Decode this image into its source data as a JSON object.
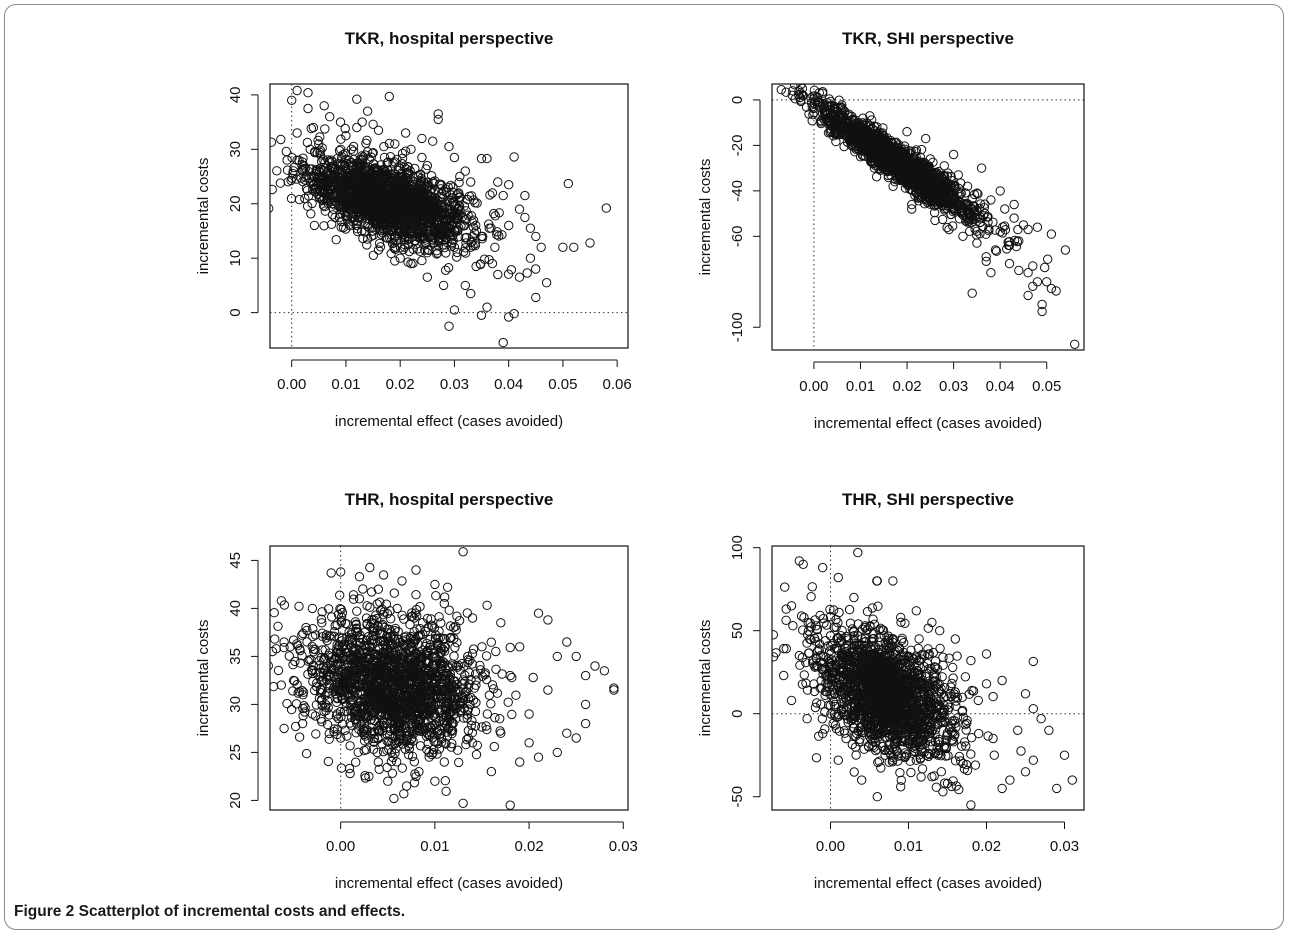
{
  "figure": {
    "label": "Figure 2",
    "caption": "Scatterplot of incremental costs and effects."
  },
  "chart_data": [
    {
      "type": "scatter",
      "title": "TKR, hospital perspective",
      "xlabel": "incremental effect (cases avoided)",
      "ylabel": "incremental costs",
      "xlim": [
        -0.004,
        0.062
      ],
      "ylim": [
        -6.5,
        42
      ],
      "xticks": [
        0.0,
        0.01,
        0.02,
        0.03,
        0.04,
        0.05,
        0.06
      ],
      "xtick_labels": [
        "0.00",
        "0.01",
        "0.02",
        "0.03",
        "0.04",
        "0.05",
        "0.06"
      ],
      "yticks": [
        0,
        10,
        20,
        30,
        40
      ],
      "ytick_labels": [
        "0",
        "10",
        "20",
        "30",
        "40"
      ],
      "reference_lines": {
        "x": 0,
        "y": 0
      },
      "points": [
        [
          -0.002,
          31.8
        ],
        [
          0.0,
          39.0
        ],
        [
          0.001,
          40.8
        ],
        [
          0.003,
          40.4
        ],
        [
          0.003,
          37.5
        ],
        [
          0.001,
          33.0
        ],
        [
          -0.001,
          29.6
        ],
        [
          0.004,
          34.0
        ],
        [
          0.005,
          31.0
        ],
        [
          0.007,
          36.0
        ],
        [
          0.009,
          35.0
        ],
        [
          0.01,
          32.5
        ],
        [
          0.012,
          39.2
        ],
        [
          0.012,
          34.0
        ],
        [
          0.011,
          30.0
        ],
        [
          0.013,
          28.0
        ],
        [
          0.015,
          34.6
        ],
        [
          0.017,
          30.5
        ],
        [
          0.018,
          39.7
        ],
        [
          0.019,
          31.0
        ],
        [
          0.02,
          26.5
        ],
        [
          0.022,
          30.0
        ],
        [
          0.024,
          28.5
        ],
        [
          0.025,
          27.0
        ],
        [
          0.027,
          35.5
        ],
        [
          0.027,
          36.5
        ],
        [
          0.029,
          30.5
        ],
        [
          0.03,
          28.5
        ],
        [
          0.031,
          25.0
        ],
        [
          0.033,
          24.0
        ],
        [
          0.035,
          28.3
        ],
        [
          0.036,
          28.3
        ],
        [
          0.038,
          24.0
        ],
        [
          0.039,
          21.5
        ],
        [
          0.041,
          28.6
        ],
        [
          0.04,
          23.5
        ],
        [
          0.042,
          19.0
        ],
        [
          0.043,
          17.5
        ],
        [
          0.044,
          15.5
        ],
        [
          0.045,
          14.0
        ],
        [
          0.046,
          12.0
        ],
        [
          0.047,
          5.5
        ],
        [
          0.044,
          10.0
        ],
        [
          0.042,
          6.5
        ],
        [
          0.041,
          -0.2
        ],
        [
          0.04,
          -0.8
        ],
        [
          0.039,
          -5.5
        ],
        [
          0.036,
          1.0
        ],
        [
          0.035,
          -0.5
        ],
        [
          0.033,
          3.5
        ],
        [
          0.029,
          -2.5
        ],
        [
          0.03,
          0.5
        ],
        [
          0.032,
          5.0
        ],
        [
          0.051,
          23.7
        ],
        [
          0.05,
          12.0
        ],
        [
          0.052,
          12.0
        ],
        [
          0.055,
          12.8
        ],
        [
          0.058,
          19.2
        ],
        [
          0.045,
          2.8
        ],
        [
          0.038,
          7.0
        ],
        [
          0.034,
          8.5
        ],
        [
          0.028,
          5.0
        ],
        [
          0.025,
          6.5
        ],
        [
          0.022,
          9.0
        ],
        [
          0.019,
          9.5
        ],
        [
          0.016,
          11.5
        ],
        [
          0.014,
          13.5
        ],
        [
          0.012,
          16.0
        ],
        [
          0.008,
          17.5
        ],
        [
          0.006,
          21.0
        ],
        [
          0.004,
          23.5
        ],
        [
          0.002,
          26.0
        ],
        [
          0.001,
          28.0
        ],
        [
          0.008,
          24.0
        ],
        [
          0.01,
          20.0
        ],
        [
          0.015,
          15.0
        ],
        [
          0.02,
          10.0
        ],
        [
          0.025,
          11.0
        ],
        [
          0.03,
          12.0
        ],
        [
          0.035,
          14.0
        ],
        [
          0.04,
          16.0
        ],
        [
          0.043,
          21.5
        ],
        [
          0.037,
          22.0
        ],
        [
          0.032,
          26.0
        ],
        [
          0.026,
          31.5
        ],
        [
          0.024,
          32.0
        ],
        [
          0.021,
          33.0
        ],
        [
          0.016,
          33.5
        ],
        [
          0.013,
          35.0
        ],
        [
          0.006,
          38.0
        ],
        [
          0.014,
          37.0
        ],
        [
          0.009,
          27.0
        ],
        [
          0.018,
          22.0
        ],
        [
          0.023,
          18.0
        ],
        [
          0.028,
          15.0
        ],
        [
          0.033,
          12.0
        ],
        [
          0.037,
          9.0
        ],
        [
          0.031,
          18.0
        ],
        [
          0.026,
          21.0
        ],
        [
          0.019,
          25.0
        ]
      ],
      "cloud": {
        "center": [
          0.018,
          20.5
        ],
        "spread": [
          0.0075,
          4.0
        ],
        "correlation": -0.55,
        "n": 1800
      }
    },
    {
      "type": "scatter",
      "title": "TKR, SHI perspective",
      "xlabel": "incremental effect (cases avoided)",
      "ylabel": "incremental costs",
      "xlim": [
        -0.009,
        0.058
      ],
      "ylim": [
        -110,
        7
      ],
      "xticks": [
        0.0,
        0.01,
        0.02,
        0.03,
        0.04,
        0.05
      ],
      "xtick_labels": [
        "0.00",
        "0.01",
        "0.02",
        "0.03",
        "0.04",
        "0.05"
      ],
      "yticks": [
        -100,
        -60,
        -40,
        -20,
        0
      ],
      "ytick_labels": [
        "-100",
        "-60",
        "-40",
        "-20",
        "0"
      ],
      "reference_lines": {
        "x": 0,
        "y": 0
      },
      "points": [
        [
          -0.007,
          4.5
        ],
        [
          -0.004,
          0.5
        ],
        [
          -0.003,
          1.0
        ],
        [
          0.0,
          0.5
        ],
        [
          0.001,
          -1.0
        ],
        [
          0.003,
          -3.0
        ],
        [
          0.006,
          -4.0
        ],
        [
          0.002,
          -8.0
        ],
        [
          0.009,
          -9.0
        ],
        [
          0.012,
          -13.0
        ],
        [
          0.015,
          -17.0
        ],
        [
          0.018,
          -21.0
        ],
        [
          0.022,
          -22.0
        ],
        [
          0.025,
          -26.0
        ],
        [
          0.028,
          -29.0
        ],
        [
          0.031,
          -33.0
        ],
        [
          0.033,
          -38.0
        ],
        [
          0.035,
          -41.0
        ],
        [
          0.038,
          -44.0
        ],
        [
          0.04,
          -40.0
        ],
        [
          0.041,
          -48.0
        ],
        [
          0.043,
          -52.0
        ],
        [
          0.045,
          -55.0
        ],
        [
          0.046,
          -57.0
        ],
        [
          0.044,
          -62.0
        ],
        [
          0.042,
          -64.0
        ],
        [
          0.039,
          -66.0
        ],
        [
          0.037,
          -69.0
        ],
        [
          0.038,
          -76.0
        ],
        [
          0.037,
          -71.0
        ],
        [
          0.034,
          -85.0
        ],
        [
          0.042,
          -72.0
        ],
        [
          0.044,
          -75.0
        ],
        [
          0.046,
          -76.0
        ],
        [
          0.047,
          -73.0
        ],
        [
          0.048,
          -80.0
        ],
        [
          0.046,
          -86.0
        ],
        [
          0.047,
          -82.0
        ],
        [
          0.05,
          -80.0
        ],
        [
          0.051,
          -83.0
        ],
        [
          0.052,
          -84.0
        ],
        [
          0.049,
          -90.0
        ],
        [
          0.049,
          -93.0
        ],
        [
          0.054,
          -66.0
        ],
        [
          0.056,
          -107.5
        ],
        [
          0.051,
          -59.0
        ],
        [
          0.048,
          -56.0
        ],
        [
          0.029,
          -57.0
        ],
        [
          0.032,
          -60.0
        ],
        [
          0.035,
          -63.0
        ],
        [
          0.021,
          -48.0
        ],
        [
          0.023,
          -43.0
        ],
        [
          0.017,
          -38.0
        ],
        [
          0.019,
          -34.0
        ],
        [
          0.013,
          -30.0
        ],
        [
          0.026,
          -53.0
        ],
        [
          0.012,
          -7.0
        ],
        [
          0.02,
          -14.0
        ],
        [
          0.024,
          -17.0
        ],
        [
          0.03,
          -24.0
        ],
        [
          0.036,
          -30.0
        ],
        [
          0.006,
          -12.0
        ],
        [
          0.008,
          -20.0
        ],
        [
          0.01,
          -25.0
        ],
        [
          0.043,
          -46.0
        ],
        [
          0.04,
          -58.0
        ],
        [
          0.033,
          -52.0
        ]
      ],
      "cloud": {
        "center": [
          0.018,
          -27.5
        ],
        "spread": [
          0.0085,
          12.5
        ],
        "correlation": -0.95,
        "n": 1800
      }
    },
    {
      "type": "scatter",
      "title": "THR, hospital perspective",
      "xlabel": "incremental effect (cases avoided)",
      "ylabel": "incremental costs",
      "xlim": [
        -0.0075,
        0.0305
      ],
      "ylim": [
        19,
        46.5
      ],
      "xticks": [
        0.0,
        0.01,
        0.02,
        0.03
      ],
      "xtick_labels": [
        "0.00",
        "0.01",
        "0.02",
        "0.03"
      ],
      "yticks": [
        20,
        25,
        30,
        35,
        40,
        45
      ],
      "ytick_labels": [
        "20",
        "25",
        "30",
        "35",
        "40",
        "45"
      ],
      "reference_lines": {
        "x": 0
      },
      "points": [
        [
          -0.007,
          36.8
        ],
        [
          -0.006,
          36.5
        ],
        [
          -0.005,
          36.7
        ],
        [
          -0.006,
          27.5
        ],
        [
          -0.005,
          32.5
        ],
        [
          -0.004,
          31.0
        ],
        [
          -0.003,
          29.0
        ],
        [
          -0.002,
          28.2
        ],
        [
          -0.003,
          40.0
        ],
        [
          -0.001,
          43.7
        ],
        [
          0.0,
          43.8
        ],
        [
          0.002,
          43.3
        ],
        [
          0.004,
          42.0
        ],
        [
          0.008,
          44.0
        ],
        [
          0.01,
          42.5
        ],
        [
          0.013,
          45.9
        ],
        [
          0.011,
          40.5
        ],
        [
          0.014,
          39.0
        ],
        [
          0.017,
          38.5
        ],
        [
          0.021,
          39.5
        ],
        [
          0.022,
          38.8
        ],
        [
          0.019,
          36.0
        ],
        [
          0.023,
          35.0
        ],
        [
          0.024,
          36.5
        ],
        [
          0.025,
          35.0
        ],
        [
          0.026,
          33.0
        ],
        [
          0.027,
          34.0
        ],
        [
          0.028,
          33.5
        ],
        [
          0.029,
          31.5
        ],
        [
          0.029,
          31.7
        ],
        [
          0.026,
          30.0
        ],
        [
          0.026,
          28.0
        ],
        [
          0.024,
          27.0
        ],
        [
          0.025,
          26.5
        ],
        [
          0.023,
          25.0
        ],
        [
          0.021,
          24.5
        ],
        [
          0.019,
          24.0
        ],
        [
          0.018,
          19.5
        ],
        [
          0.013,
          19.7
        ],
        [
          0.01,
          22.0
        ],
        [
          0.008,
          22.5
        ],
        [
          0.005,
          22.0
        ],
        [
          0.003,
          22.5
        ],
        [
          0.001,
          22.8
        ],
        [
          0.007,
          21.5
        ],
        [
          0.016,
          23.0
        ],
        [
          0.02,
          29.0
        ],
        [
          0.022,
          31.5
        ],
        [
          0.018,
          33.0
        ],
        [
          0.015,
          36.0
        ],
        [
          0.012,
          38.0
        ],
        [
          0.006,
          40.0
        ],
        [
          0.002,
          41.0
        ],
        [
          -0.002,
          38.5
        ],
        [
          -0.001,
          34.0
        ],
        [
          -0.002,
          30.5
        ],
        [
          0.0,
          26.5
        ],
        [
          0.004,
          24.0
        ],
        [
          0.011,
          24.0
        ],
        [
          0.014,
          26.0
        ],
        [
          0.017,
          27.0
        ],
        [
          0.02,
          26.0
        ]
      ],
      "cloud": {
        "center": [
          0.0055,
          32.0
        ],
        "spread": [
          0.0045,
          3.5
        ],
        "correlation": -0.15,
        "n": 1800
      }
    },
    {
      "type": "scatter",
      "title": "THR, SHI perspective",
      "xlabel": "incremental effect (cases avoided)",
      "ylabel": "incremental costs",
      "xlim": [
        -0.0075,
        0.0325
      ],
      "ylim": [
        -58,
        101
      ],
      "xticks": [
        0.0,
        0.01,
        0.02,
        0.03
      ],
      "xtick_labels": [
        "0.00",
        "0.01",
        "0.02",
        "0.03"
      ],
      "yticks": [
        -50,
        0,
        50,
        100
      ],
      "ytick_labels": [
        "-50",
        "0",
        "50",
        "100"
      ],
      "reference_lines": {
        "x": 0,
        "y": 0
      },
      "points": [
        [
          -0.005,
          65.0
        ],
        [
          -0.004,
          92.0
        ],
        [
          -0.0035,
          90.0
        ],
        [
          -0.001,
          88.0
        ],
        [
          0.0035,
          97.0
        ],
        [
          0.001,
          82.0
        ],
        [
          0.006,
          80.0
        ],
        [
          0.008,
          80.0
        ],
        [
          0.011,
          62.0
        ],
        [
          0.013,
          55.0
        ],
        [
          0.016,
          45.0
        ],
        [
          0.018,
          32.0
        ],
        [
          0.02,
          36.0
        ],
        [
          0.022,
          20.0
        ],
        [
          0.026,
          31.5
        ],
        [
          0.025,
          12.0
        ],
        [
          0.026,
          3.0
        ],
        [
          0.027,
          -3.0
        ],
        [
          0.028,
          -10.0
        ],
        [
          0.03,
          -25.0
        ],
        [
          0.031,
          -40.0
        ],
        [
          0.029,
          -45.0
        ],
        [
          0.026,
          -28.0
        ],
        [
          0.025,
          -35.0
        ],
        [
          0.023,
          -40.0
        ],
        [
          0.022,
          -45.0
        ],
        [
          0.018,
          -55.0
        ],
        [
          0.015,
          -42.0
        ],
        [
          0.013,
          -38.0
        ],
        [
          0.009,
          -44.0
        ],
        [
          0.006,
          -50.0
        ],
        [
          0.004,
          -40.0
        ],
        [
          0.001,
          -28.0
        ],
        [
          -0.001,
          -12.0
        ],
        [
          -0.003,
          -3.0
        ],
        [
          -0.005,
          8.0
        ],
        [
          -0.006,
          23.0
        ],
        [
          -0.004,
          35.0
        ],
        [
          -0.002,
          28.0
        ],
        [
          0.003,
          70.0
        ],
        [
          0.009,
          58.0
        ],
        [
          0.014,
          50.0
        ],
        [
          0.02,
          18.0
        ],
        [
          0.024,
          -10.0
        ],
        [
          0.021,
          -25.0
        ],
        [
          0.017,
          -30.0
        ],
        [
          0.011,
          -28.0
        ],
        [
          0.007,
          -25.0
        ],
        [
          0.002,
          -15.0
        ],
        [
          0.0,
          5.0
        ],
        [
          0.003,
          45.0
        ],
        [
          0.012,
          18.0
        ],
        [
          0.016,
          10.0
        ],
        [
          0.019,
          -12.0
        ]
      ],
      "cloud": {
        "center": [
          0.007,
          12.0
        ],
        "spread": [
          0.0045,
          20.0
        ],
        "correlation": -0.45,
        "n": 1800
      }
    }
  ]
}
